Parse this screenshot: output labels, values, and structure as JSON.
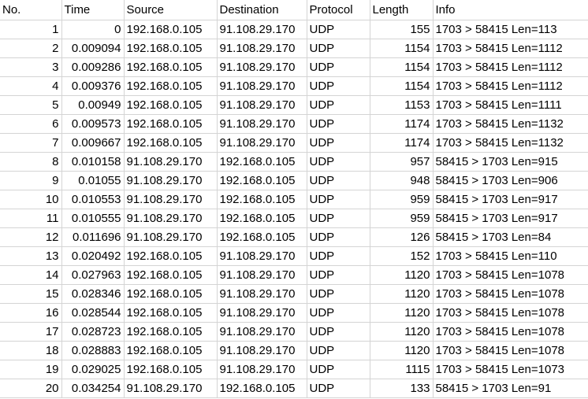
{
  "columns": [
    "No.",
    "Time",
    "Source",
    "Destination",
    "Protocol",
    "Length",
    "Info"
  ],
  "rows": [
    [
      "1",
      "0",
      "192.168.0.105",
      "91.108.29.170",
      "UDP",
      "155",
      "1703  >  58415 Len=113"
    ],
    [
      "2",
      "0.009094",
      "192.168.0.105",
      "91.108.29.170",
      "UDP",
      "1154",
      "1703  >  58415 Len=1112"
    ],
    [
      "3",
      "0.009286",
      "192.168.0.105",
      "91.108.29.170",
      "UDP",
      "1154",
      "1703  >  58415 Len=1112"
    ],
    [
      "4",
      "0.009376",
      "192.168.0.105",
      "91.108.29.170",
      "UDP",
      "1154",
      "1703  >  58415 Len=1112"
    ],
    [
      "5",
      "0.00949",
      "192.168.0.105",
      "91.108.29.170",
      "UDP",
      "1153",
      "1703  >  58415 Len=1111"
    ],
    [
      "6",
      "0.009573",
      "192.168.0.105",
      "91.108.29.170",
      "UDP",
      "1174",
      "1703  >  58415 Len=1132"
    ],
    [
      "7",
      "0.009667",
      "192.168.0.105",
      "91.108.29.170",
      "UDP",
      "1174",
      "1703  >  58415 Len=1132"
    ],
    [
      "8",
      "0.010158",
      "91.108.29.170",
      "192.168.0.105",
      "UDP",
      "957",
      "58415  >  1703 Len=915"
    ],
    [
      "9",
      "0.01055",
      "91.108.29.170",
      "192.168.0.105",
      "UDP",
      "948",
      "58415  >  1703 Len=906"
    ],
    [
      "10",
      "0.010553",
      "91.108.29.170",
      "192.168.0.105",
      "UDP",
      "959",
      "58415  >  1703 Len=917"
    ],
    [
      "11",
      "0.010555",
      "91.108.29.170",
      "192.168.0.105",
      "UDP",
      "959",
      "58415  >  1703 Len=917"
    ],
    [
      "12",
      "0.011696",
      "91.108.29.170",
      "192.168.0.105",
      "UDP",
      "126",
      "58415  >  1703 Len=84"
    ],
    [
      "13",
      "0.020492",
      "192.168.0.105",
      "91.108.29.170",
      "UDP",
      "152",
      "1703  >  58415 Len=110"
    ],
    [
      "14",
      "0.027963",
      "192.168.0.105",
      "91.108.29.170",
      "UDP",
      "1120",
      "1703  >  58415 Len=1078"
    ],
    [
      "15",
      "0.028346",
      "192.168.0.105",
      "91.108.29.170",
      "UDP",
      "1120",
      "1703  >  58415 Len=1078"
    ],
    [
      "16",
      "0.028544",
      "192.168.0.105",
      "91.108.29.170",
      "UDP",
      "1120",
      "1703  >  58415 Len=1078"
    ],
    [
      "17",
      "0.028723",
      "192.168.0.105",
      "91.108.29.170",
      "UDP",
      "1120",
      "1703  >  58415 Len=1078"
    ],
    [
      "18",
      "0.028883",
      "192.168.0.105",
      "91.108.29.170",
      "UDP",
      "1120",
      "1703  >  58415 Len=1078"
    ],
    [
      "19",
      "0.029025",
      "192.168.0.105",
      "91.108.29.170",
      "UDP",
      "1115",
      "1703  >  58415 Len=1073"
    ],
    [
      "20",
      "0.034254",
      "91.108.29.170",
      "192.168.0.105",
      "UDP",
      "133",
      "58415  >  1703 Len=91"
    ]
  ]
}
